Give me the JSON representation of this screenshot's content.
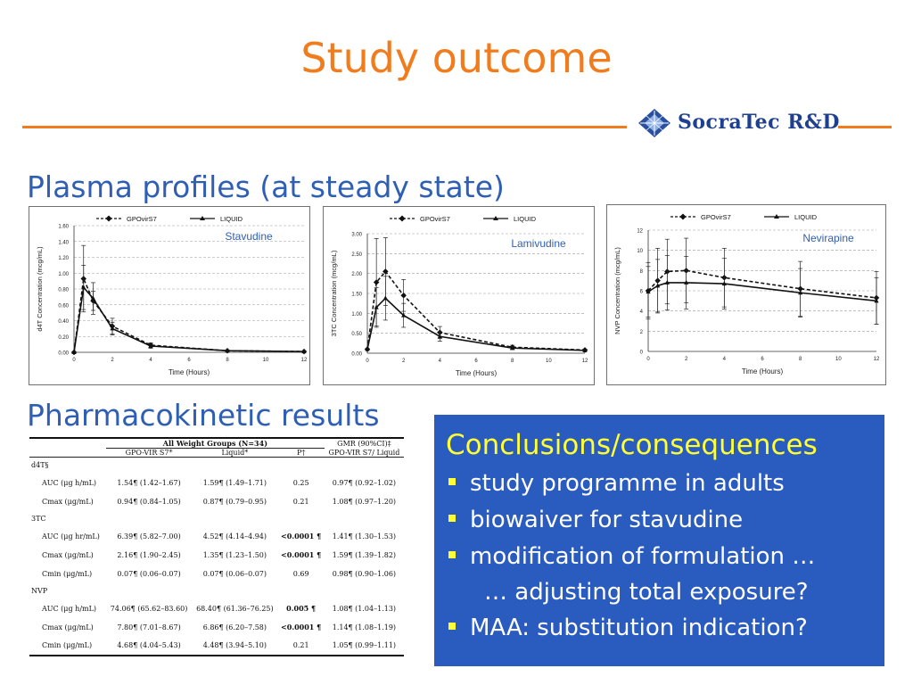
{
  "title": "Study outcome",
  "logo": {
    "text": "SocraTec R&D",
    "icon": "diamond-logo-icon"
  },
  "sections": {
    "plasma": "Plasma profiles (at steady state)",
    "pk": "Pharmacokinetic results"
  },
  "colors": {
    "accent": "#f07c1e",
    "section": "#2f5fb4",
    "box_bg": "#2a5bbf",
    "box_title": "#ffff33"
  },
  "chart_data": [
    {
      "type": "line",
      "drug_label": "Stavudine",
      "ylabel": "d4T Concentration (mcg/mL)",
      "xlabel": "Time (Hours)",
      "legend": [
        "GPOvirS7",
        "LIQUID"
      ],
      "legend_placement": "top",
      "xlim": [
        0,
        12
      ],
      "ylim": [
        0,
        1.6
      ],
      "x_ticks": [
        "0",
        "2",
        "4",
        "6",
        "8",
        "10",
        "12"
      ],
      "y_ticks": [
        "0.00",
        "0.20",
        "0.40",
        "0.60",
        "0.80",
        "1.00",
        "1.20",
        "1.40",
        "1.60"
      ],
      "grid": true,
      "series": [
        {
          "name": "GPOvirS7",
          "style": "dashed",
          "x": [
            0,
            0.5,
            1,
            2,
            4,
            8,
            12
          ],
          "y": [
            0,
            0.93,
            0.65,
            0.33,
            0.09,
            0.02,
            0.01
          ],
          "err": [
            0,
            0.42,
            0.12,
            0.1,
            0.03,
            0.01,
            0.005
          ]
        },
        {
          "name": "LIQUID",
          "style": "solid",
          "x": [
            0,
            0.5,
            1,
            2,
            4,
            8,
            12
          ],
          "y": [
            0,
            0.82,
            0.68,
            0.3,
            0.08,
            0.02,
            0.01
          ],
          "err": [
            0,
            0.28,
            0.2,
            0.08,
            0.03,
            0.01,
            0.005
          ]
        }
      ]
    },
    {
      "type": "line",
      "drug_label": "Lamivudine",
      "ylabel": "3TC Concentration (mcg/mL)",
      "xlabel": "Time (Hours)",
      "legend": [
        "GPOvirS7",
        "LIQUID"
      ],
      "legend_placement": "top",
      "xlim": [
        0,
        12
      ],
      "ylim": [
        0,
        3.0
      ],
      "x_ticks": [
        "0",
        "2",
        "4",
        "6",
        "8",
        "10",
        "12"
      ],
      "y_ticks": [
        "0.00",
        "0.50",
        "1.00",
        "1.50",
        "2.00",
        "2.50",
        "3.00"
      ],
      "grid": true,
      "series": [
        {
          "name": "GPOvirS7",
          "style": "dashed",
          "x": [
            0,
            0.5,
            1,
            2,
            4,
            8,
            12
          ],
          "y": [
            0.1,
            1.78,
            2.05,
            1.45,
            0.52,
            0.15,
            0.08
          ],
          "err": [
            0,
            1.1,
            0.85,
            0.4,
            0.15,
            0.05,
            0.02
          ]
        },
        {
          "name": "LIQUID",
          "style": "solid",
          "x": [
            0,
            0.5,
            1,
            2,
            4,
            8,
            12
          ],
          "y": [
            0.1,
            1.15,
            1.38,
            0.95,
            0.42,
            0.13,
            0.07
          ],
          "err": [
            0,
            0.5,
            0.55,
            0.3,
            0.12,
            0.04,
            0.02
          ]
        }
      ]
    },
    {
      "type": "line",
      "drug_label": "Nevirapine",
      "ylabel": "NVP Concentration (mcg/mL)",
      "xlabel": "Time (Hours)",
      "legend": [
        "GPOvirS7",
        "LIQUID"
      ],
      "legend_placement": "top",
      "xlim": [
        0,
        12
      ],
      "ylim": [
        0,
        12
      ],
      "x_ticks": [
        "0",
        "2",
        "4",
        "6",
        "8",
        "10",
        "12"
      ],
      "y_ticks": [
        "0",
        "2",
        "4",
        "6",
        "8",
        "10",
        "12"
      ],
      "grid": true,
      "series": [
        {
          "name": "GPOvirS7",
          "style": "dashed",
          "x": [
            0,
            0.5,
            1,
            2,
            4,
            8,
            12
          ],
          "y": [
            6.0,
            7.0,
            7.9,
            8.0,
            7.3,
            6.2,
            5.3
          ],
          "err": [
            2.8,
            3.2,
            3.2,
            3.2,
            2.9,
            2.7,
            2.6
          ]
        },
        {
          "name": "LIQUID",
          "style": "solid",
          "x": [
            0,
            0.5,
            1,
            2,
            4,
            8,
            12
          ],
          "y": [
            5.9,
            6.5,
            6.8,
            6.8,
            6.7,
            5.8,
            5.0
          ],
          "err": [
            2.5,
            2.6,
            2.7,
            2.6,
            2.5,
            2.4,
            2.3
          ]
        }
      ]
    }
  ],
  "pk_table": {
    "group_header": "All Weight Groups (N=34)",
    "gmr_header": "GMR (90%CI)‡",
    "gmr_sub": "GPO-VIR S7/",
    "gmr_sub2": "Liquid",
    "col_gpo": "GPO-VIR S7",
    "col_gpo_mark": "*",
    "col_liquid": "Liquid",
    "col_liquid_mark": "*",
    "col_p": "P",
    "col_p_mark": "†",
    "groups": [
      {
        "name": "d4T",
        "mark": "§",
        "rows": [
          {
            "param": "AUC (μg h/mL)",
            "gpo": "1.54¶ (1.42–1.67)",
            "liquid": "1.59¶ (1.49–1.71)",
            "p": "0.25",
            "gmr": "0.97¶ (0.92–1.02)"
          },
          {
            "param": "Cmax (μg/mL)",
            "gpo": "0.94¶ (0.84–1.05)",
            "liquid": "0.87¶ (0.79–0.95)",
            "p": "0.21",
            "gmr": "1.08¶ (0.97–1.20)"
          }
        ]
      },
      {
        "name": "3TC",
        "mark": "",
        "rows": [
          {
            "param": "AUC (μg hr/mL)",
            "gpo": "6.39¶ (5.82–7.00)",
            "liquid": "4.52¶ (4.14–4.94)",
            "p": "<0.0001 ¶",
            "gmr": "1.41¶ (1.30–1.53)"
          },
          {
            "param": "Cmax (μg/mL)",
            "gpo": "2.16¶ (1.90–2.45)",
            "liquid": "1.35¶ (1.23–1.50)",
            "p": "<0.0001 ¶",
            "gmr": "1.59¶ (1.39–1.82)"
          },
          {
            "param": "Cmin (μg/mL)",
            "gpo": "0.07¶ (0.06–0.07)",
            "liquid": "0.07¶ (0.06–0.07)",
            "p": "0.69",
            "gmr": "0.98¶ (0.90–1.06)"
          }
        ]
      },
      {
        "name": "NVP",
        "mark": "",
        "rows": [
          {
            "param": "AUC (μg h/mL)",
            "gpo": "74.06¶ (65.62–83.60)",
            "liquid": "68.40¶ (61.36–76.25)",
            "p": "0.005 ¶",
            "gmr": "1.08¶ (1.04–1.13)"
          },
          {
            "param": "Cmax (μg/mL)",
            "gpo": "7.80¶ (7.01–8.67)",
            "liquid": "6.86¶ (6.20–7.58)",
            "p": "<0.0001 ¶",
            "gmr": "1.14¶ (1.08–1.19)"
          },
          {
            "param": "Cmin (μg/mL)",
            "gpo": "4.68¶ (4.04–5.43)",
            "liquid": "4.48¶ (3.94–5.10)",
            "p": "0.21",
            "gmr": "1.05¶ (0.99–1.11)"
          }
        ]
      }
    ]
  },
  "conclusions": {
    "title": "Conclusions/consequences",
    "items": [
      "study programme in adults",
      "biowaiver for stavudine",
      "modification of formulation …",
      "MAA: substitution indication?"
    ],
    "continuation": "… adjusting total exposure?"
  }
}
